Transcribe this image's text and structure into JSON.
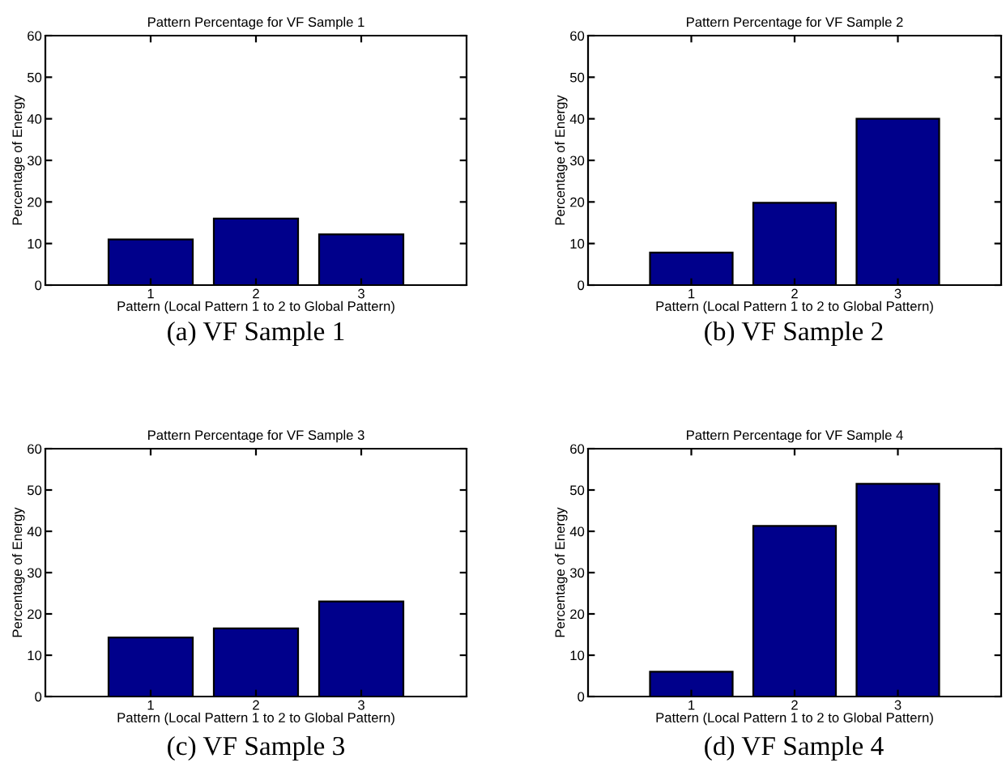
{
  "chart_data": [
    {
      "type": "bar",
      "title": "Pattern Percentage for VF Sample 1",
      "xlabel": "Pattern (Local Pattern 1 to 2 to Global Pattern)",
      "ylabel": "Percentage of Energy",
      "categories": [
        "1",
        "2",
        "3"
      ],
      "values": [
        11,
        16,
        12.2
      ],
      "color": "#00008b",
      "ylim": [
        0,
        60
      ],
      "yticks": [
        0,
        10,
        20,
        30,
        40,
        50,
        60
      ],
      "annotations": [
        "(a) VF Sample 1"
      ]
    },
    {
      "type": "bar",
      "title": "Pattern Percentage for VF Sample 2",
      "xlabel": "Pattern (Local Pattern 1 to 2 to Global Pattern)",
      "ylabel": "Percentage of Energy",
      "categories": [
        "1",
        "2",
        "3"
      ],
      "values": [
        7.8,
        19.8,
        40
      ],
      "color": "#00008b",
      "ylim": [
        0,
        60
      ],
      "yticks": [
        0,
        10,
        20,
        30,
        40,
        50,
        60
      ],
      "annotations": [
        "(b) VF Sample 2"
      ]
    },
    {
      "type": "bar",
      "title": "Pattern Percentage for VF Sample 3",
      "xlabel": "Pattern (Local Pattern 1 to 2 to Global Pattern)",
      "ylabel": "Percentage of Energy",
      "categories": [
        "1",
        "2",
        "3"
      ],
      "values": [
        14.3,
        16.5,
        23
      ],
      "color": "#00008b",
      "ylim": [
        0,
        60
      ],
      "yticks": [
        0,
        10,
        20,
        30,
        40,
        50,
        60
      ],
      "annotations": [
        "(c) VF Sample 3"
      ]
    },
    {
      "type": "bar",
      "title": "Pattern Percentage for VF Sample 4",
      "xlabel": "Pattern (Local Pattern 1 to 2 to Global Pattern)",
      "ylabel": "Percentage of Energy",
      "categories": [
        "1",
        "2",
        "3"
      ],
      "values": [
        6,
        41.3,
        51.5
      ],
      "color": "#00008b",
      "ylim": [
        0,
        60
      ],
      "yticks": [
        0,
        10,
        20,
        30,
        40,
        50,
        60
      ],
      "annotations": [
        "(d) VF Sample 4"
      ]
    }
  ]
}
